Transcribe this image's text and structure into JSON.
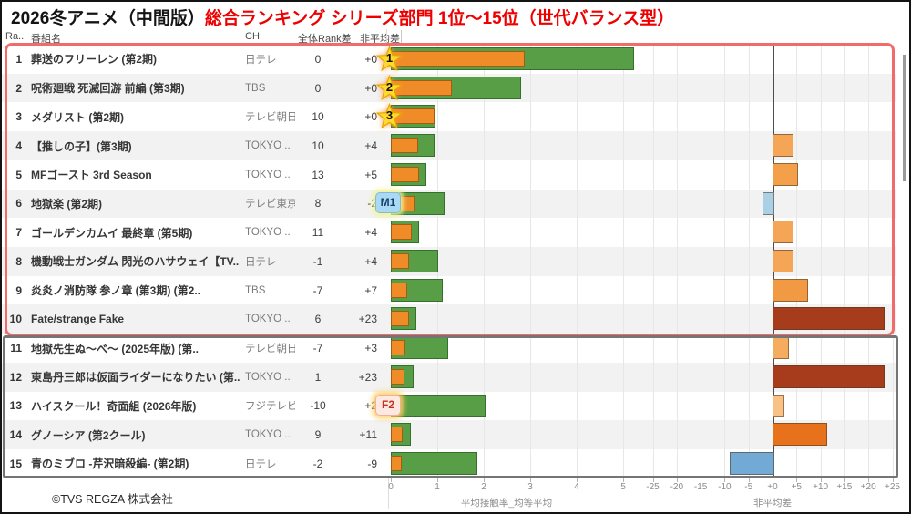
{
  "title": {
    "prefix": "2026冬アニメ（中間版）",
    "highlight": "総合ランキング シリーズ部門 1位～15位（世代バランス型）"
  },
  "table_header": {
    "rank": "Ra..",
    "name": "番組名",
    "channel": "CH",
    "rank_diff": "全体Rank差",
    "avg_diff": "非平均差"
  },
  "footer": {
    "copyright": "©TVS REGZA 株式会社"
  },
  "axes": {
    "left": {
      "label": "平均接触率_均等平均",
      "ticks": [
        "0",
        "1",
        "2",
        "3",
        "4",
        "5"
      ]
    },
    "right": {
      "label": "非平均差",
      "ticks": [
        "-25",
        "-20",
        "-15",
        "-10",
        "-5",
        "+0",
        "+5",
        "+10",
        "+15",
        "+20",
        "+25"
      ]
    }
  },
  "colors": {
    "title_red": "#ee0000",
    "bar_green": "#579e47",
    "bar_orange": "#f08c28",
    "top10_border": "#f26b6b",
    "bottom5_border": "#757575",
    "zero_line": "#4d4d4d",
    "badge_star": "#ffd92e",
    "badge_m1_bg": "#a9d9f3",
    "badge_f2_bg": "#fde9e2"
  },
  "rows": [
    {
      "rank": "1",
      "name": "葬送のフリーレン (第2期)",
      "channel": "日テレ",
      "rank_diff": "0",
      "avg_diff": "+0",
      "badge": "star",
      "badge_label": "1"
    },
    {
      "rank": "2",
      "name": "呪術廻戦 死滅回游 前編 (第3期)",
      "channel": "TBS",
      "rank_diff": "0",
      "avg_diff": "+0",
      "badge": "star",
      "badge_label": "2"
    },
    {
      "rank": "3",
      "name": "メダリスト (第2期)",
      "channel": "テレビ朝日",
      "rank_diff": "10",
      "avg_diff": "+0",
      "badge": "star",
      "badge_label": "3"
    },
    {
      "rank": "4",
      "name": "【推しの子】(第3期)",
      "channel": "TOKYO ..",
      "rank_diff": "10",
      "avg_diff": "+4",
      "badge": null,
      "badge_label": ""
    },
    {
      "rank": "5",
      "name": "MFゴースト 3rd Season",
      "channel": "TOKYO ..",
      "rank_diff": "13",
      "avg_diff": "+5",
      "badge": null,
      "badge_label": ""
    },
    {
      "rank": "6",
      "name": "地獄楽 (第2期)",
      "channel": "テレビ東京",
      "rank_diff": "8",
      "avg_diff": "-2",
      "badge": "m1",
      "badge_label": "M1"
    },
    {
      "rank": "7",
      "name": "ゴールデンカムイ 最終章 (第5期)",
      "channel": "TOKYO ..",
      "rank_diff": "11",
      "avg_diff": "+4",
      "badge": null,
      "badge_label": ""
    },
    {
      "rank": "8",
      "name": "機動戦士ガンダム 閃光のハサウェイ【TV..",
      "channel": "日テレ",
      "rank_diff": "-1",
      "avg_diff": "+4",
      "badge": null,
      "badge_label": ""
    },
    {
      "rank": "9",
      "name": "炎炎ノ消防隊 参ノ章 (第3期) (第2..",
      "channel": "TBS",
      "rank_diff": "-7",
      "avg_diff": "+7",
      "badge": null,
      "badge_label": ""
    },
    {
      "rank": "10",
      "name": "Fate/strange Fake",
      "channel": "TOKYO ..",
      "rank_diff": "6",
      "avg_diff": "+23",
      "badge": null,
      "badge_label": ""
    },
    {
      "rank": "11",
      "name": "地獄先生ぬ～べ～ (2025年版) (第..",
      "channel": "テレビ朝日",
      "rank_diff": "-7",
      "avg_diff": "+3",
      "badge": null,
      "badge_label": ""
    },
    {
      "rank": "12",
      "name": "東島丹三郎は仮面ライダーになりたい (第..",
      "channel": "TOKYO ..",
      "rank_diff": "1",
      "avg_diff": "+23",
      "badge": null,
      "badge_label": ""
    },
    {
      "rank": "13",
      "name": "ハイスクール！奇面組 (2026年版)",
      "channel": "フジテレビ",
      "rank_diff": "-10",
      "avg_diff": "+2",
      "badge": "f2",
      "badge_label": "F2"
    },
    {
      "rank": "14",
      "name": "グノーシア (第2クール)",
      "channel": "TOKYO ..",
      "rank_diff": "9",
      "avg_diff": "+11",
      "badge": null,
      "badge_label": ""
    },
    {
      "rank": "15",
      "name": "青のミブロ -芹沢暗殺編- (第2期)",
      "channel": "日テレ",
      "rank_diff": "-2",
      "avg_diff": "-9",
      "badge": null,
      "badge_label": ""
    }
  ],
  "chart_data": [
    {
      "type": "bar",
      "orientation": "horizontal",
      "xlabel": "平均接触率_均等平均",
      "xlim": [
        0,
        5.5
      ],
      "grid": true,
      "categories": [
        "葬送のフリーレン (第2期)",
        "呪術廻戦 死滅回游 前編 (第3期)",
        "メダリスト (第2期)",
        "【推しの子】(第3期)",
        "MFゴースト 3rd Season",
        "地獄楽 (第2期)",
        "ゴールデンカムイ 最終章 (第5期)",
        "機動戦士ガンダム 閃光のハサウェイ【TV..",
        "炎炎ノ消防隊 参ノ章 (第3期) (第2..",
        "Fate/strange Fake",
        "地獄先生ぬ～べ～ (2025年版) (第..",
        "東島丹三郎は仮面ライダーになりたい (第..",
        "ハイスクール！奇面組 (2026年版)",
        "グノーシア (第2クール)",
        "青のミブロ -芹沢暗殺編- (第2期)"
      ],
      "series": [
        {
          "name": "平均接触率",
          "color": "#579e47",
          "values": [
            5.2,
            2.77,
            0.93,
            0.91,
            0.73,
            1.12,
            0.57,
            0.99,
            1.07,
            0.5,
            1.2,
            0.45,
            2.0,
            0.4,
            1.82
          ]
        },
        {
          "name": "均等平均",
          "color": "#f08c28",
          "values": [
            2.85,
            1.27,
            0.9,
            0.55,
            0.57,
            0.48,
            0.42,
            0.35,
            0.32,
            0.35,
            0.27,
            0.25,
            0.15,
            0.22,
            0.2
          ]
        }
      ]
    },
    {
      "type": "bar",
      "orientation": "horizontal",
      "xlabel": "非平均差",
      "xlim": [
        -25,
        25
      ],
      "grid": true,
      "categories": [
        "葬送のフリーレン (第2期)",
        "呪術廻戦 死滅回游 前編 (第3期)",
        "メダリスト (第2期)",
        "【推しの子】(第3期)",
        "MFゴースト 3rd Season",
        "地獄楽 (第2期)",
        "ゴールデンカムイ 最終章 (第5期)",
        "機動戦士ガンダム 閃光のハサウェイ【TV..",
        "炎炎ノ消防隊 参ノ章 (第3期) (第2..",
        "Fate/strange Fake",
        "地獄先生ぬ～べ～ (2025年版) (第..",
        "東島丹三郎は仮面ライダーになりたい (第..",
        "ハイスクール！奇面組 (2026年版)",
        "グノーシア (第2クール)",
        "青のミブロ -芹沢暗殺編- (第2期)"
      ],
      "values": [
        0,
        0,
        0,
        4,
        5,
        -2,
        4,
        4,
        7,
        23,
        3,
        23,
        2,
        11,
        -9
      ],
      "colors": [
        "",
        "",
        "",
        "#f5a556",
        "#f4a04b",
        "#abd0e6",
        "#f5a556",
        "#f5a556",
        "#f19a43",
        "#a63c1c",
        "#f6ac5e",
        "#a63c1c",
        "#f9c183",
        "#e8721c",
        "#72a9d5"
      ]
    }
  ]
}
